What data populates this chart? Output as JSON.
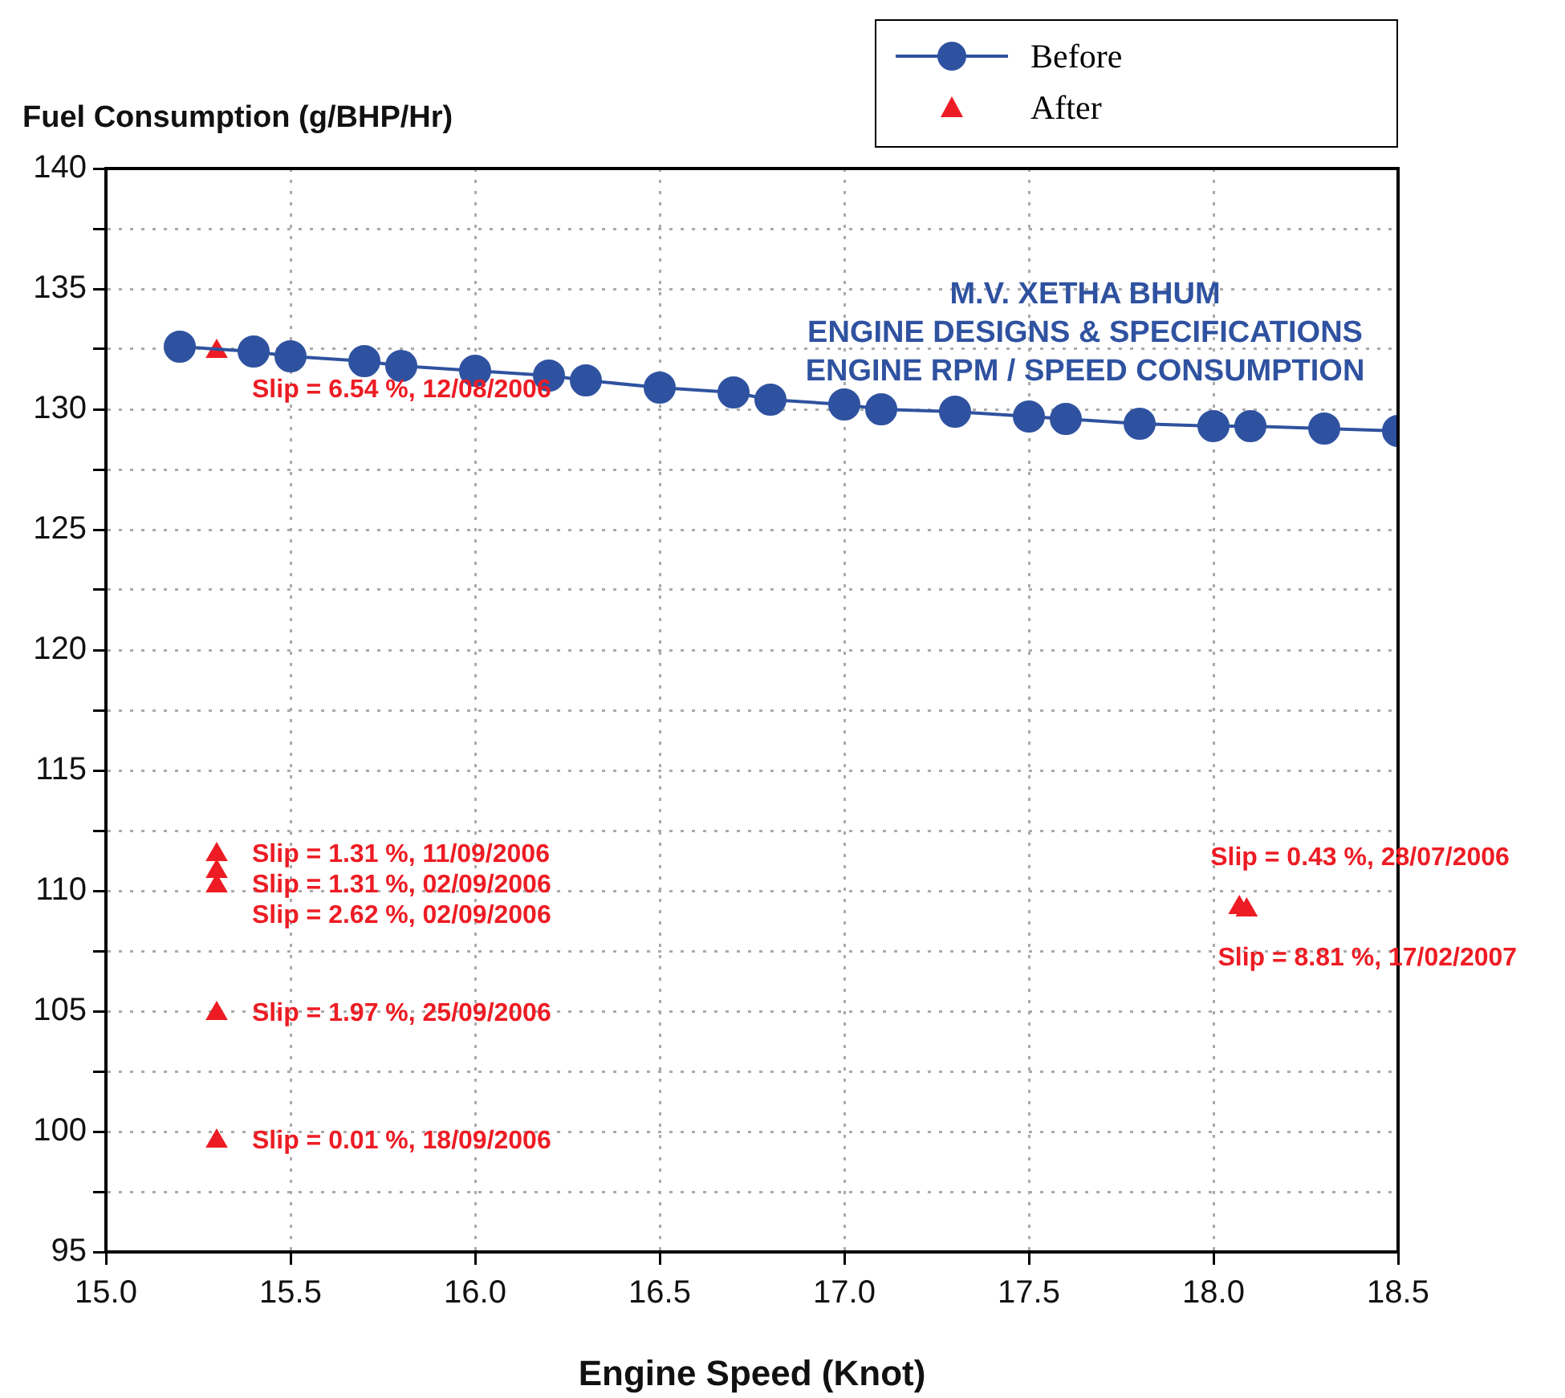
{
  "chart_data": {
    "type": "line",
    "title": "M.V. XETHA BHUM",
    "subtitle": "ENGINE DESIGNS & SPECIFICATIONS\nENGINE RPM / SPEED CONSUMPTION",
    "xlabel": "Engine Speed (Knot)",
    "ylabel": "Fuel Consumption (g/BHP/Hr)",
    "xlim": [
      15,
      18.5
    ],
    "xticks": [
      {
        "value": 15,
        "label": "15.0"
      },
      {
        "value": 15.5,
        "label": "15.5"
      },
      {
        "value": 16,
        "label": "16.0"
      },
      {
        "value": 16.5,
        "label": "16.5"
      },
      {
        "value": 17,
        "label": "17.0"
      },
      {
        "value": 17.5,
        "label": "17.5"
      },
      {
        "value": 18,
        "label": "18.0"
      },
      {
        "value": 18.5,
        "label": "18.5"
      }
    ],
    "ylim": [
      95,
      140
    ],
    "yticks": [
      95,
      {
        "value": 97.5,
        "label": null
      },
      100,
      {
        "value": 102.5,
        "label": null
      },
      105,
      {
        "value": 107.5,
        "label": null
      },
      110,
      {
        "value": 112.5,
        "label": null
      },
      115,
      {
        "value": 117.5,
        "label": null
      },
      120,
      {
        "value": 122.5,
        "label": null
      },
      125,
      {
        "value": 127.5,
        "label": null
      },
      130,
      {
        "value": 132.5,
        "label": null
      },
      135,
      {
        "value": 137.5,
        "label": null
      },
      140
    ],
    "grid": true,
    "legend": "top right",
    "line_style": "solid",
    "series": [
      {
        "name": "Before",
        "type": "line",
        "marker": "circle",
        "color": "#2f52a0",
        "x": [
          15.2,
          15.4,
          15.5,
          15.7,
          15.8,
          16.0,
          16.2,
          16.3,
          16.5,
          16.7,
          16.8,
          17.0,
          17.1,
          17.3,
          17.5,
          17.6,
          17.8,
          18.0,
          18.1,
          18.3,
          18.5
        ],
        "values": [
          132.6,
          132.4,
          132.2,
          132.0,
          131.8,
          131.6,
          131.4,
          131.2,
          130.9,
          130.7,
          130.4,
          130.2,
          130.0,
          129.9,
          129.7,
          129.6,
          129.4,
          129.3,
          129.3,
          129.2,
          129.1
        ]
      },
      {
        "name": "After",
        "type": "scatter",
        "marker": "triangle",
        "color": "#ed1c24",
        "x": [
          15.3,
          15.3,
          15.3,
          15.3,
          15.3,
          15.3,
          18.07,
          18.09
        ],
        "values": [
          132.4,
          111.5,
          110.8,
          110.2,
          104.9,
          99.6,
          109.3,
          109.2
        ]
      }
    ],
    "annotations": [
      {
        "text": "Slip = 6.54 %, 12/08/2006",
        "x": 15.3,
        "y": 132.4
      },
      {
        "text": "Slip = 1.31 %, 11/09/2006",
        "x": 15.3,
        "y": 111.5
      },
      {
        "text": "Slip = 1.31 %, 02/09/2006",
        "x": 15.3,
        "y": 110.8
      },
      {
        "text": "Slip = 2.62 %, 02/09/2006",
        "x": 15.3,
        "y": 110.2
      },
      {
        "text": "Slip = 1.97 %, 25/09/2006",
        "x": 15.3,
        "y": 104.9
      },
      {
        "text": "Slip = 0.01 %, 18/09/2006",
        "x": 15.3,
        "y": 99.6
      },
      {
        "text": "Slip = 0.43 %, 28/07/2006",
        "x": 18.07,
        "y": 109.3
      },
      {
        "text": "Slip = 8.81 %, 17/02/2007",
        "x": 18.09,
        "y": 109.2
      }
    ]
  }
}
